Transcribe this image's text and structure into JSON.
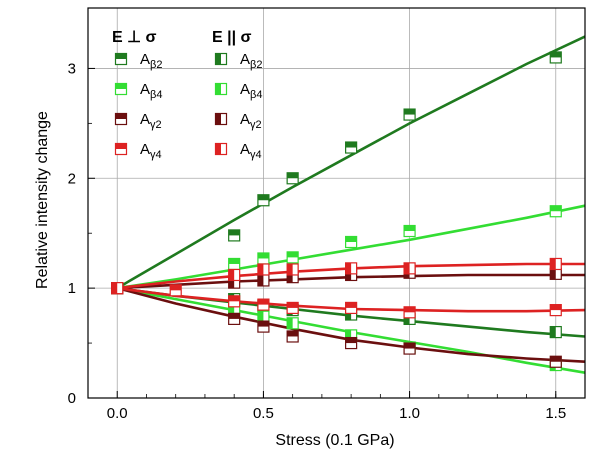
{
  "chart_data": {
    "type": "scatter",
    "title": "",
    "xlabel": "Stress (0.1 GPa)",
    "ylabel": "Relative intensity change",
    "xlim": [
      -0.1,
      1.6
    ],
    "ylim": [
      0,
      3.55
    ],
    "xticks": [
      0.0,
      0.5,
      1.0,
      1.5
    ],
    "xtick_labels": [
      "0.0",
      "0.5",
      "1.0",
      "1.5"
    ],
    "yticks": [
      0,
      1,
      2,
      3
    ],
    "ytick_labels": [
      "0",
      "1",
      "2",
      "3"
    ],
    "grid": true,
    "legend_placement": "top-left",
    "legend": {
      "headers": [
        "E ⊥ σ",
        "E || σ"
      ],
      "perp": [
        {
          "main": "A",
          "sub": "β2"
        },
        {
          "main": "A",
          "sub": "β4"
        },
        {
          "main": "A",
          "sub": "γ2"
        },
        {
          "main": "A",
          "sub": "γ4"
        }
      ],
      "par": [
        {
          "main": "A",
          "sub": "β2"
        },
        {
          "main": "A",
          "sub": "β4"
        },
        {
          "main": "A",
          "sub": "γ2"
        },
        {
          "main": "A",
          "sub": "γ4"
        }
      ]
    },
    "colors": {
      "beta2": "#1f7a1f",
      "beta4": "#33dd33",
      "gamma2": "#6b0f0f",
      "gamma4": "#dd2222"
    },
    "series": [
      {
        "key": "beta2",
        "orientation": "perp",
        "color": "#1f7a1f",
        "points": [
          [
            0,
            1
          ],
          [
            0.4,
            1.48
          ],
          [
            0.5,
            1.8
          ],
          [
            0.6,
            2.0
          ],
          [
            0.8,
            2.28
          ],
          [
            1.0,
            2.58
          ],
          [
            1.5,
            3.1
          ]
        ]
      },
      {
        "key": "beta2",
        "orientation": "par",
        "color": "#1f7a1f",
        "points": [
          [
            0,
            1
          ],
          [
            0.4,
            0.9
          ],
          [
            0.5,
            0.84
          ],
          [
            0.6,
            0.8
          ],
          [
            0.8,
            0.76
          ],
          [
            1.0,
            0.72
          ],
          [
            1.5,
            0.6
          ]
        ]
      },
      {
        "key": "beta4",
        "orientation": "perp",
        "color": "#33dd33",
        "points": [
          [
            0,
            1
          ],
          [
            0.4,
            1.22
          ],
          [
            0.5,
            1.27
          ],
          [
            0.6,
            1.28
          ],
          [
            0.8,
            1.42
          ],
          [
            1.0,
            1.52
          ],
          [
            1.5,
            1.7
          ]
        ]
      },
      {
        "key": "beta4",
        "orientation": "par",
        "color": "#33dd33",
        "points": [
          [
            0,
            1
          ],
          [
            0.4,
            0.82
          ],
          [
            0.5,
            0.74
          ],
          [
            0.6,
            0.68
          ],
          [
            0.8,
            0.57
          ],
          [
            1.0,
            0.46
          ],
          [
            1.5,
            0.3
          ]
        ]
      },
      {
        "key": "gamma2",
        "orientation": "perp",
        "color": "#6b0f0f",
        "points": [
          [
            0,
            1
          ],
          [
            0.4,
            0.72
          ],
          [
            0.5,
            0.65
          ],
          [
            0.6,
            0.56
          ],
          [
            0.8,
            0.5
          ],
          [
            1.0,
            0.45
          ],
          [
            1.5,
            0.33
          ]
        ]
      },
      {
        "key": "gamma2",
        "orientation": "par",
        "color": "#6b0f0f",
        "points": [
          [
            0,
            1
          ],
          [
            0.4,
            1.05
          ],
          [
            0.5,
            1.07
          ],
          [
            0.6,
            1.1
          ],
          [
            0.8,
            1.12
          ],
          [
            1.0,
            1.14
          ],
          [
            1.5,
            1.13
          ]
        ]
      },
      {
        "key": "gamma4",
        "orientation": "perp",
        "color": "#dd2222",
        "points": [
          [
            0,
            1
          ],
          [
            0.2,
            0.98
          ],
          [
            0.4,
            0.88
          ],
          [
            0.5,
            0.85
          ],
          [
            0.6,
            0.82
          ],
          [
            0.8,
            0.82
          ],
          [
            1.0,
            0.78
          ],
          [
            1.5,
            0.8
          ]
        ]
      },
      {
        "key": "gamma4",
        "orientation": "par",
        "color": "#dd2222",
        "points": [
          [
            0,
            1
          ],
          [
            0.4,
            1.12
          ],
          [
            0.5,
            1.17
          ],
          [
            0.6,
            1.17
          ],
          [
            0.8,
            1.18
          ],
          [
            1.0,
            1.18
          ],
          [
            1.5,
            1.22
          ]
        ]
      }
    ],
    "fits": [
      {
        "key": "beta2_perp",
        "color": "#1f7a1f",
        "points": [
          [
            0,
            1
          ],
          [
            0.2,
            1.31
          ],
          [
            0.4,
            1.62
          ],
          [
            0.6,
            1.92
          ],
          [
            0.8,
            2.21
          ],
          [
            1.0,
            2.5
          ],
          [
            1.2,
            2.77
          ],
          [
            1.4,
            3.04
          ],
          [
            1.6,
            3.29
          ]
        ]
      },
      {
        "key": "beta2_par",
        "color": "#1f7a1f",
        "points": [
          [
            0,
            1
          ],
          [
            0.2,
            0.93
          ],
          [
            0.4,
            0.87
          ],
          [
            0.6,
            0.81
          ],
          [
            0.8,
            0.75
          ],
          [
            1.0,
            0.7
          ],
          [
            1.2,
            0.65
          ],
          [
            1.4,
            0.6
          ],
          [
            1.6,
            0.56
          ]
        ]
      },
      {
        "key": "beta4_perp",
        "color": "#33dd33",
        "points": [
          [
            0,
            1
          ],
          [
            0.2,
            1.08
          ],
          [
            0.4,
            1.17
          ],
          [
            0.6,
            1.26
          ],
          [
            0.8,
            1.35
          ],
          [
            1.0,
            1.44
          ],
          [
            1.2,
            1.54
          ],
          [
            1.4,
            1.64
          ],
          [
            1.6,
            1.75
          ]
        ]
      },
      {
        "key": "beta4_par",
        "color": "#33dd33",
        "points": [
          [
            0,
            1
          ],
          [
            0.2,
            0.9
          ],
          [
            0.4,
            0.8
          ],
          [
            0.6,
            0.7
          ],
          [
            0.8,
            0.6
          ],
          [
            1.0,
            0.51
          ],
          [
            1.2,
            0.42
          ],
          [
            1.4,
            0.32
          ],
          [
            1.6,
            0.23
          ]
        ]
      },
      {
        "key": "gamma2_perp",
        "color": "#6b0f0f",
        "points": [
          [
            0,
            1
          ],
          [
            0.2,
            0.86
          ],
          [
            0.4,
            0.74
          ],
          [
            0.6,
            0.63
          ],
          [
            0.8,
            0.53
          ],
          [
            1.0,
            0.46
          ],
          [
            1.2,
            0.4
          ],
          [
            1.4,
            0.36
          ],
          [
            1.6,
            0.33
          ]
        ]
      },
      {
        "key": "gamma2_par",
        "color": "#6b0f0f",
        "points": [
          [
            0,
            1
          ],
          [
            0.2,
            1.03
          ],
          [
            0.4,
            1.06
          ],
          [
            0.6,
            1.08
          ],
          [
            0.8,
            1.1
          ],
          [
            1.0,
            1.11
          ],
          [
            1.2,
            1.12
          ],
          [
            1.4,
            1.12
          ],
          [
            1.6,
            1.12
          ]
        ]
      },
      {
        "key": "gamma4_perp",
        "color": "#dd2222",
        "points": [
          [
            0,
            1
          ],
          [
            0.2,
            0.93
          ],
          [
            0.4,
            0.88
          ],
          [
            0.6,
            0.84
          ],
          [
            0.8,
            0.81
          ],
          [
            1.0,
            0.8
          ],
          [
            1.2,
            0.79
          ],
          [
            1.4,
            0.79
          ],
          [
            1.6,
            0.8
          ]
        ]
      },
      {
        "key": "gamma4_par",
        "color": "#dd2222",
        "points": [
          [
            0,
            1
          ],
          [
            0.2,
            1.06
          ],
          [
            0.4,
            1.11
          ],
          [
            0.6,
            1.15
          ],
          [
            0.8,
            1.18
          ],
          [
            1.0,
            1.2
          ],
          [
            1.2,
            1.21
          ],
          [
            1.4,
            1.22
          ],
          [
            1.6,
            1.22
          ]
        ]
      }
    ]
  }
}
